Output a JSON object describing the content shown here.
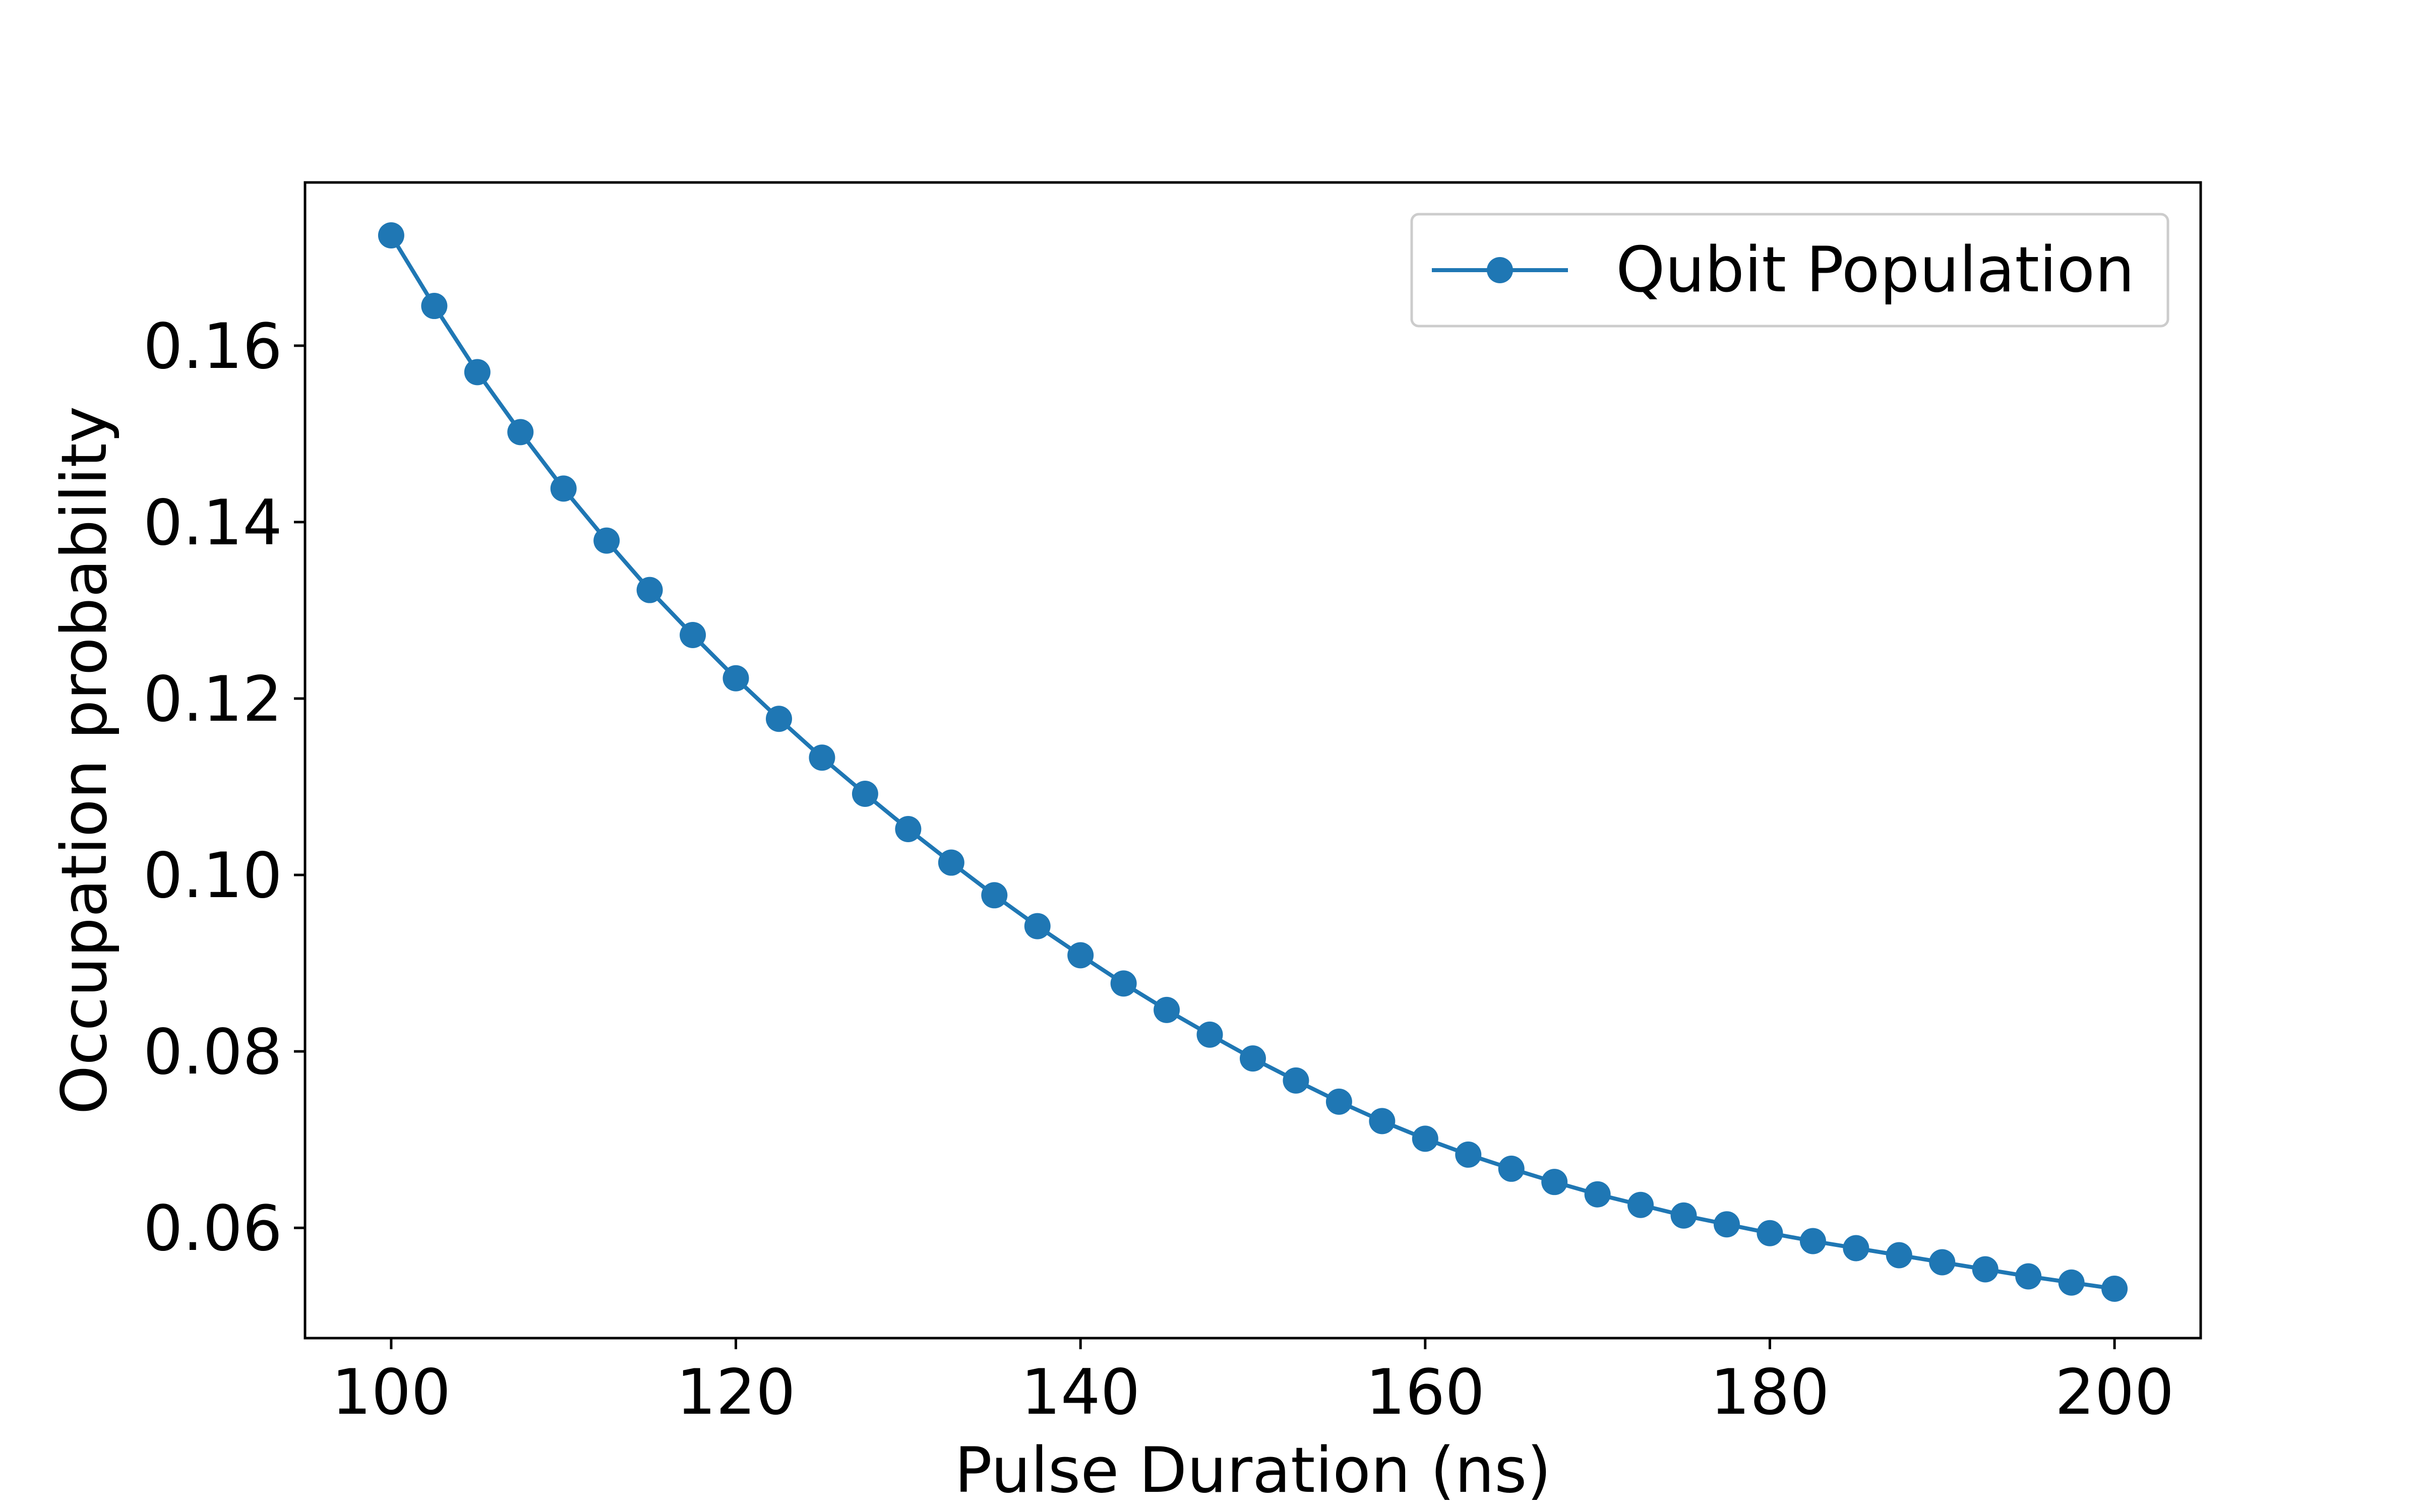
{
  "chart_data": {
    "type": "line",
    "title": "",
    "xlabel": "Pulse Duration (ns)",
    "ylabel": "Occupation probability",
    "xlim": [
      95,
      205
    ],
    "ylim": [
      0.0475,
      0.1785
    ],
    "xticks": [
      100,
      120,
      140,
      160,
      180,
      200
    ],
    "xtick_labels": [
      "100",
      "120",
      "140",
      "160",
      "180",
      "200"
    ],
    "yticks": [
      0.06,
      0.08,
      0.1,
      0.12,
      0.14,
      0.16
    ],
    "ytick_labels": [
      "0.06",
      "0.08",
      "0.10",
      "0.12",
      "0.14",
      "0.16"
    ],
    "grid": false,
    "legend_position": "upper right",
    "series": [
      {
        "name": "Qubit Population",
        "color": "#1f77b4",
        "marker": "circle",
        "x": [
          100.0,
          102.5,
          105.0,
          107.5,
          110.0,
          112.5,
          115.0,
          117.5,
          120.0,
          122.5,
          125.0,
          127.5,
          130.0,
          132.5,
          135.0,
          137.5,
          140.0,
          142.5,
          145.0,
          147.5,
          150.0,
          152.5,
          155.0,
          157.5,
          160.0,
          162.5,
          165.0,
          167.5,
          170.0,
          172.5,
          175.0,
          177.5,
          180.0,
          182.5,
          185.0,
          187.5,
          190.0,
          192.5,
          195.0,
          197.5,
          200.0
        ],
        "y": [
          0.1725,
          0.1645,
          0.157,
          0.1502,
          0.1438,
          0.1379,
          0.1323,
          0.1272,
          0.1223,
          0.1177,
          0.1133,
          0.1092,
          0.1052,
          0.1014,
          0.0977,
          0.0942,
          0.0909,
          0.0877,
          0.0847,
          0.0819,
          0.0792,
          0.0767,
          0.0743,
          0.0721,
          0.0701,
          0.0683,
          0.0667,
          0.0652,
          0.0638,
          0.0626,
          0.0614,
          0.0604,
          0.0594,
          0.0585,
          0.0577,
          0.0569,
          0.0561,
          0.0553,
          0.0545,
          0.0538,
          0.0531
        ]
      }
    ]
  }
}
